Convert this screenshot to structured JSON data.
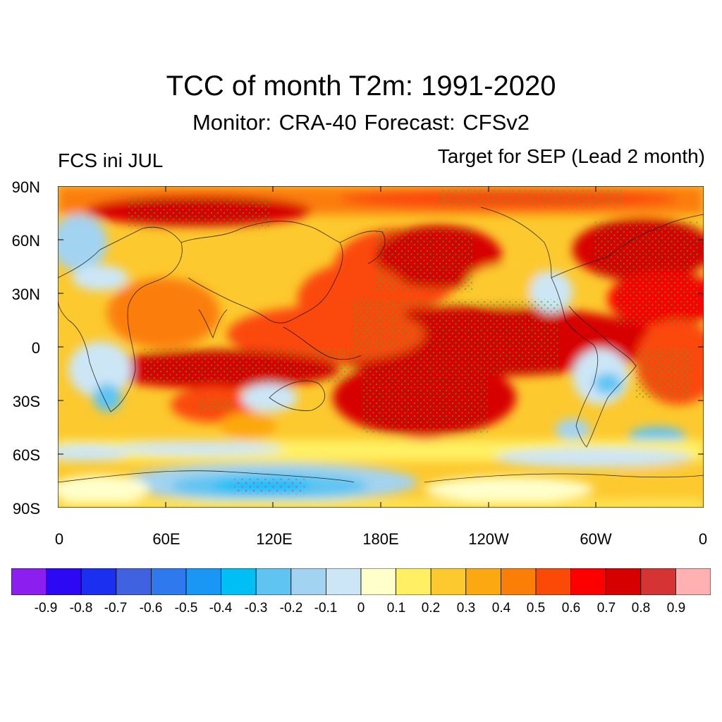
{
  "title": "TCC of month T2m: 1991-2020",
  "subtitle": "Monitor: CRA-40   Forecast: CFSv2",
  "left_label": "FCS ini JUL",
  "right_label": "Target for SEP (Lead 2 month)",
  "lat_labels": [
    "90N",
    "60N",
    "30N",
    "0",
    "30S",
    "60S",
    "90S"
  ],
  "lon_labels": [
    "0",
    "60E",
    "120E",
    "180E",
    "120W",
    "60W",
    "0"
  ],
  "colorbar": {
    "labels": [
      "-0.9",
      "-0.8",
      "-0.7",
      "-0.6",
      "-0.5",
      "-0.4",
      "-0.3",
      "-0.2",
      "-0.1",
      "0",
      "0.1",
      "0.2",
      "0.3",
      "0.4",
      "0.5",
      "0.6",
      "0.7",
      "0.8",
      "0.9"
    ],
    "colors": [
      "#8a1ff0",
      "#2d08f5",
      "#1b2ff0",
      "#4062e0",
      "#2f79ee",
      "#1a96f5",
      "#00bff5",
      "#5fc4f2",
      "#a2d3f0",
      "#cce6f6",
      "#ffffcc",
      "#fff063",
      "#fcc92e",
      "#fca810",
      "#fb7e07",
      "#fb4a08",
      "#fc0000",
      "#d70000",
      "#d63333",
      "#ffb0b0"
    ]
  },
  "map": {
    "color_scheme": "diverging blue-yellow-red",
    "significance_dots": "green"
  }
}
